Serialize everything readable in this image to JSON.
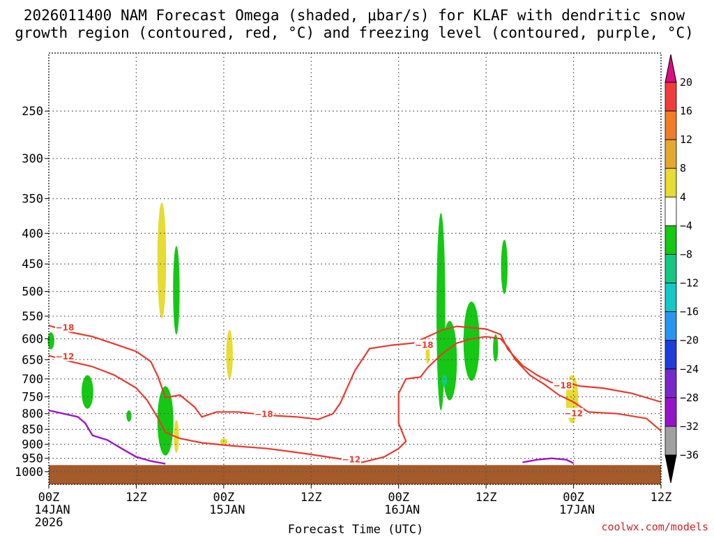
{
  "chart_data": {
    "type": "heatmap",
    "title_lines": [
      "2026011400 NAM Forecast Omega (shaded, μbar/s) for KLAF with dendritic snow",
      "growth region (contoured, red, °C) and freezing level (contoured, purple, °C)"
    ],
    "xlabel": "Forecast Time (UTC)",
    "x_ticks": [
      {
        "hour": 0,
        "label": "00Z",
        "date": "14JAN",
        "year": "2026"
      },
      {
        "hour": 12,
        "label": "12Z"
      },
      {
        "hour": 24,
        "label": "00Z",
        "date": "15JAN"
      },
      {
        "hour": 36,
        "label": "12Z"
      },
      {
        "hour": 48,
        "label": "00Z",
        "date": "16JAN"
      },
      {
        "hour": 60,
        "label": "12Z"
      },
      {
        "hour": 72,
        "label": "00Z",
        "date": "17JAN"
      },
      {
        "hour": 84,
        "label": "12Z"
      }
    ],
    "xlim": [
      0,
      84
    ],
    "y_ticks": [
      250,
      300,
      350,
      400,
      450,
      500,
      550,
      600,
      650,
      700,
      750,
      800,
      850,
      900,
      950,
      1000
    ],
    "ylim": [
      1050,
      200
    ],
    "y_scale": "log-pressure",
    "grid": true,
    "colorbar": {
      "labels": [
        "20",
        "16",
        "12",
        "8",
        "4",
        "−4",
        "−8",
        "−12",
        "−16",
        "−20",
        "−24",
        "−28",
        "−32",
        "−36"
      ],
      "colors": [
        "#d80e82",
        "#f03c3c",
        "#f07e28",
        "#e4a830",
        "#e6dc32",
        "#ffffff",
        "#14c814",
        "#14c882",
        "#14c8c8",
        "#2896f0",
        "#1e3cdc",
        "#7828c8",
        "#9614c8",
        "#a0a0a0",
        "#000000"
      ]
    },
    "contours": {
      "dgz_minus12": {
        "label": "−12",
        "color": "#e83a2e",
        "points": [
          [
            0,
            640
          ],
          [
            3,
            655
          ],
          [
            6,
            668
          ],
          [
            9,
            690
          ],
          [
            12,
            725
          ],
          [
            13.5,
            760
          ],
          [
            15,
            815
          ],
          [
            16,
            860
          ],
          [
            18,
            880
          ],
          [
            21,
            895
          ],
          [
            25,
            905
          ],
          [
            30,
            915
          ],
          [
            35,
            932
          ],
          [
            40,
            952
          ],
          [
            43,
            965
          ],
          [
            46,
            945
          ],
          [
            48,
            915
          ],
          [
            49,
            890
          ],
          [
            48,
            830
          ],
          [
            48,
            740
          ],
          [
            49,
            700
          ],
          [
            51,
            695
          ],
          [
            52,
            670
          ],
          [
            54,
            635
          ],
          [
            56,
            610
          ],
          [
            58,
            600
          ],
          [
            60,
            595
          ],
          [
            62,
            600
          ],
          [
            63,
            620
          ],
          [
            64,
            650
          ],
          [
            66,
            690
          ],
          [
            68,
            715
          ],
          [
            70,
            745
          ],
          [
            72,
            765
          ],
          [
            73,
            780
          ],
          [
            74,
            795
          ],
          [
            78,
            800
          ],
          [
            82,
            815
          ],
          [
            84,
            855
          ]
        ]
      },
      "dgz_minus18": {
        "label": "−18",
        "color": "#e83a2e",
        "points": [
          [
            0,
            570
          ],
          [
            3,
            585
          ],
          [
            6,
            595
          ],
          [
            9,
            612
          ],
          [
            12,
            630
          ],
          [
            14,
            655
          ],
          [
            15,
            695
          ],
          [
            16,
            752
          ],
          [
            18,
            745
          ],
          [
            20,
            780
          ],
          [
            21,
            810
          ],
          [
            23,
            795
          ],
          [
            26,
            795
          ],
          [
            30,
            805
          ],
          [
            34,
            810
          ],
          [
            37,
            818
          ],
          [
            39,
            800
          ],
          [
            40,
            768
          ],
          [
            42,
            678
          ],
          [
            44,
            623
          ],
          [
            47,
            615
          ],
          [
            50,
            610
          ],
          [
            52,
            595
          ],
          [
            54,
            580
          ],
          [
            56,
            572
          ],
          [
            58,
            575
          ],
          [
            60,
            578
          ],
          [
            62,
            590
          ],
          [
            63,
            625
          ],
          [
            65,
            665
          ],
          [
            67,
            690
          ],
          [
            69,
            710
          ],
          [
            71,
            710
          ],
          [
            73,
            720
          ],
          [
            76,
            725
          ],
          [
            80,
            740
          ],
          [
            84,
            765
          ]
        ]
      },
      "freezing": {
        "label": "",
        "color": "#9a18c4",
        "points": [
          [
            0,
            790
          ],
          [
            2,
            800
          ],
          [
            4,
            810
          ],
          [
            5,
            830
          ],
          [
            6,
            870
          ],
          [
            8,
            885
          ],
          [
            10,
            915
          ],
          [
            12,
            945
          ],
          [
            14,
            960
          ],
          [
            16,
            970
          ]
        ],
        "points2": [
          [
            65,
            965
          ],
          [
            67,
            955
          ],
          [
            69,
            950
          ],
          [
            71,
            955
          ],
          [
            72,
            968
          ]
        ]
      }
    },
    "omega_areas": [
      {
        "value": 6,
        "cx": 15.5,
        "p_top": 355,
        "p_bot": 555,
        "hw": 0.6
      },
      {
        "value": -6,
        "cx": 17.5,
        "p_top": 420,
        "p_bot": 590,
        "hw": 0.45
      },
      {
        "value": -6,
        "cx": 0.3,
        "p_top": 585,
        "p_bot": 625,
        "hw": 0.45
      },
      {
        "value": -6,
        "cx": 5.3,
        "p_top": 690,
        "p_bot": 785,
        "hw": 0.8
      },
      {
        "value": -6,
        "cx": 11,
        "p_top": 790,
        "p_bot": 825,
        "hw": 0.35
      },
      {
        "value": -6,
        "cx": 16,
        "p_top": 720,
        "p_bot": 940,
        "hw": 1.1
      },
      {
        "value": 6,
        "cx": 17.5,
        "p_top": 820,
        "p_bot": 930,
        "hw": 0.35
      },
      {
        "value": 6,
        "cx": 24.8,
        "p_top": 580,
        "p_bot": 700,
        "hw": 0.45
      },
      {
        "value": 6,
        "cx": 24,
        "p_top": 880,
        "p_bot": 900,
        "hw": 0.5
      },
      {
        "value": -6,
        "cx": 53.8,
        "p_top": 370,
        "p_bot": 790,
        "hw": 0.6
      },
      {
        "value": -6,
        "cx": 55,
        "p_top": 560,
        "p_bot": 760,
        "hw": 1.0
      },
      {
        "value": -10,
        "cx": 54.3,
        "p_top": 690,
        "p_bot": 720,
        "hw": 0.35
      },
      {
        "value": -6,
        "cx": 58,
        "p_top": 520,
        "p_bot": 705,
        "hw": 1.1
      },
      {
        "value": -6,
        "cx": 62.5,
        "p_top": 410,
        "p_bot": 505,
        "hw": 0.45
      },
      {
        "value": -6,
        "cx": 61.3,
        "p_top": 590,
        "p_bot": 655,
        "hw": 0.35
      },
      {
        "value": 6,
        "cx": 52,
        "p_top": 615,
        "p_bot": 660,
        "hw": 0.2
      },
      {
        "value": 6,
        "cx": 71.8,
        "p_top": 690,
        "p_bot": 830,
        "hw": 0.85
      }
    ],
    "terrain": {
      "color": "#a45a2a",
      "p_top": 975
    }
  },
  "credit": "coolwx.com/models"
}
